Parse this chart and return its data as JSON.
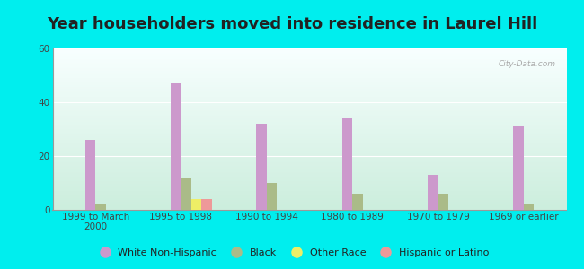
{
  "title": "Year householders moved into residence in Laurel Hill",
  "categories": [
    "1999 to March\n2000",
    "1995 to 1998",
    "1990 to 1994",
    "1980 to 1989",
    "1970 to 1979",
    "1969 or earlier"
  ],
  "series": {
    "White Non-Hispanic": [
      26,
      47,
      32,
      34,
      13,
      31
    ],
    "Black": [
      2,
      12,
      10,
      6,
      6,
      2
    ],
    "Other Race": [
      0,
      4,
      0,
      0,
      0,
      0
    ],
    "Hispanic or Latino": [
      0,
      4,
      0,
      0,
      0,
      0
    ]
  },
  "colors": {
    "White Non-Hispanic": "#cc99cc",
    "Black": "#aabb88",
    "Other Race": "#eeee66",
    "Hispanic or Latino": "#ee9999"
  },
  "ylim": [
    0,
    60
  ],
  "yticks": [
    0,
    20,
    40,
    60
  ],
  "background_color": "#00eeee",
  "title_fontsize": 13,
  "tick_fontsize": 7.5,
  "legend_fontsize": 8,
  "bar_width": 0.12
}
